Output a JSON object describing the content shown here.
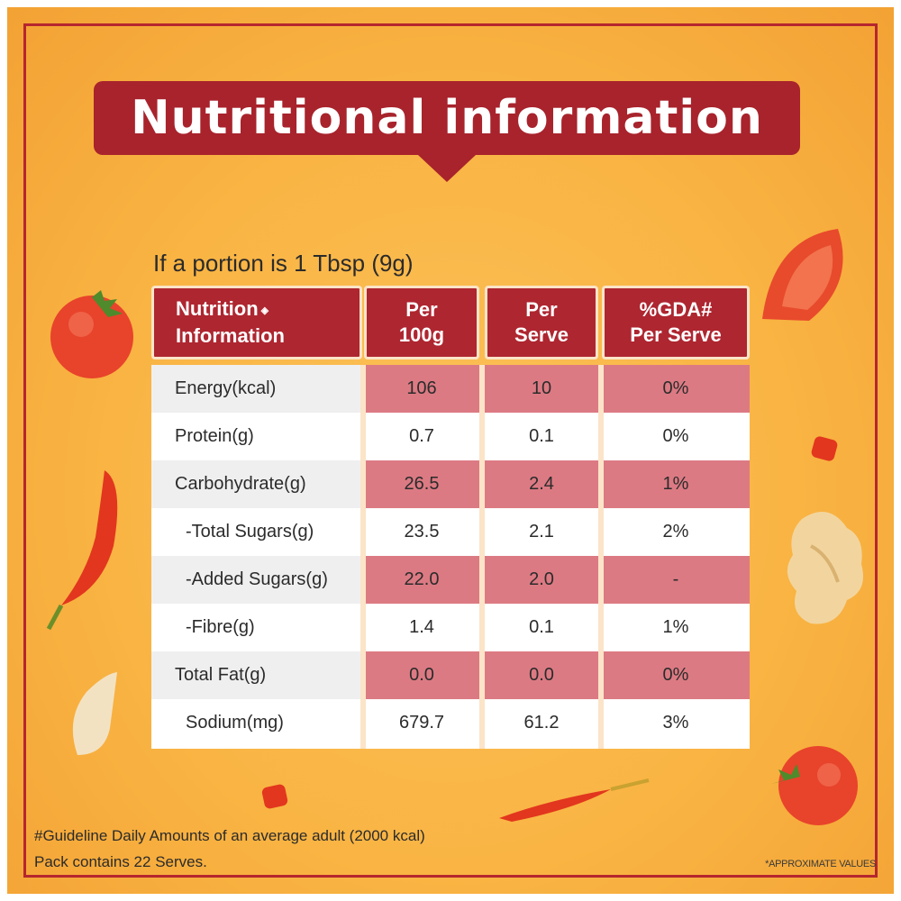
{
  "title": "Nutritional information",
  "portion_text": "If a portion is 1 Tbsp (9g)",
  "table": {
    "headers": [
      {
        "line1": "Nutrition",
        "line2": "Information"
      },
      {
        "line1": "Per",
        "line2": "100g"
      },
      {
        "line1": "Per",
        "line2": "Serve"
      },
      {
        "line1": "%GDA#",
        "line2": "Per Serve"
      }
    ],
    "rows": [
      {
        "name": "Energy(kcal)",
        "per100g": "106",
        "perServe": "10",
        "gda": "0%"
      },
      {
        "name": "Protein(g)",
        "per100g": "0.7",
        "perServe": "0.1",
        "gda": "0%"
      },
      {
        "name": "Carbohydrate(g)",
        "per100g": "26.5",
        "perServe": "2.4",
        "gda": "1%"
      },
      {
        "name": "-Total Sugars(g)",
        "per100g": "23.5",
        "perServe": "2.1",
        "gda": "2%"
      },
      {
        "name": "-Added Sugars(g)",
        "per100g": "22.0",
        "perServe": "2.0",
        "gda": "-"
      },
      {
        "name": "-Fibre(g)",
        "per100g": "1.4",
        "perServe": "0.1",
        "gda": "1%"
      },
      {
        "name": "Total Fat(g)",
        "per100g": "0.0",
        "perServe": "0.0",
        "gda": "0%"
      },
      {
        "name": "Sodium(mg)",
        "per100g": "679.7",
        "perServe": "61.2",
        "gda": "3%"
      }
    ]
  },
  "footnotes": {
    "gda": "#Guideline Daily Amounts of an average adult (2000 kcal)",
    "pack": "Pack contains 22 Serves."
  },
  "approx_note": "*APPROXIMATE VALUES",
  "colors": {
    "background": "#f9b443",
    "brand_red": "#a8232c",
    "shaded_cell": "#dc7a83"
  },
  "decorations": [
    "tomato-icon",
    "tomato-slice-icon",
    "chili-icon",
    "ginger-icon",
    "garlic-clove-icon"
  ]
}
